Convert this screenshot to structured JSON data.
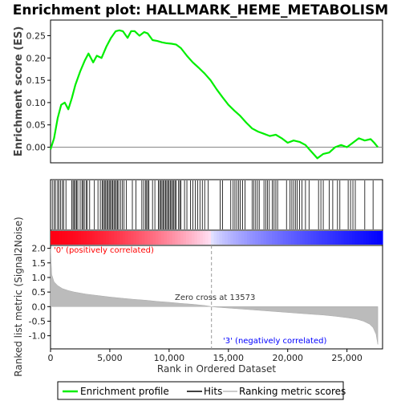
{
  "chart_data": {
    "type": "line",
    "title": "Enrichment plot: HALLMARK_HEME_METABOLISM",
    "top_panel": {
      "ylabel": "Enrichment score (ES)",
      "ylim": [
        -0.035,
        0.285
      ],
      "yticks": [
        0.0,
        0.05,
        0.1,
        0.15,
        0.2,
        0.25
      ],
      "ytick_labels": [
        "0.00",
        "0.05",
        "0.10",
        "0.15",
        "0.20",
        "0.25"
      ],
      "series": [
        {
          "name": "Enrichment profile",
          "color": "#00ee00",
          "x": [
            0,
            300,
            600,
            900,
            1200,
            1500,
            1800,
            2100,
            2500,
            2900,
            3200,
            3600,
            3900,
            4300,
            4700,
            5100,
            5500,
            5800,
            6100,
            6500,
            6800,
            7100,
            7500,
            7900,
            8200,
            8600,
            9000,
            9400,
            9800,
            10200,
            10600,
            11000,
            11500,
            12000,
            12500,
            13000,
            13500,
            14000,
            14500,
            15000,
            15500,
            16000,
            16500,
            17000,
            17500,
            18000,
            18500,
            19000,
            19500,
            20000,
            20500,
            21000,
            21500,
            22000,
            22500,
            23000,
            23500,
            24000,
            24500,
            25000,
            25500,
            26000,
            26500,
            27000,
            27300,
            27600
          ],
          "y": [
            -0.005,
            0.02,
            0.065,
            0.095,
            0.1,
            0.085,
            0.11,
            0.14,
            0.17,
            0.195,
            0.21,
            0.19,
            0.205,
            0.2,
            0.225,
            0.245,
            0.26,
            0.262,
            0.26,
            0.245,
            0.26,
            0.26,
            0.25,
            0.258,
            0.255,
            0.24,
            0.238,
            0.235,
            0.233,
            0.232,
            0.23,
            0.222,
            0.205,
            0.19,
            0.178,
            0.165,
            0.15,
            0.13,
            0.112,
            0.095,
            0.082,
            0.07,
            0.055,
            0.042,
            0.035,
            0.03,
            0.025,
            0.028,
            0.02,
            0.01,
            0.015,
            0.012,
            0.005,
            -0.01,
            -0.025,
            -0.015,
            -0.012,
            0.0,
            0.005,
            0.0,
            0.01,
            0.02,
            0.015,
            0.018,
            0.01,
            0.0
          ]
        }
      ]
    },
    "hits_panel": {
      "hit_positions": [
        150,
        300,
        420,
        600,
        700,
        850,
        1000,
        1100,
        1300,
        1800,
        1900,
        2000,
        2100,
        2200,
        2300,
        2500,
        2650,
        2750,
        2850,
        3000,
        3100,
        3300,
        3700,
        4000,
        4200,
        4350,
        4450,
        4550,
        4650,
        4750,
        4850,
        4950,
        5050,
        5150,
        5250,
        5350,
        5450,
        5550,
        5650,
        5750,
        5900,
        6050,
        6200,
        6400,
        6900,
        7200,
        7700,
        7850,
        8000,
        8100,
        8200,
        8300,
        8600,
        8800,
        9100,
        9200,
        9300,
        9400,
        9500,
        9600,
        9700,
        9800,
        9900,
        10000,
        10100,
        10200,
        10300,
        10400,
        10500,
        10600,
        10800,
        10900,
        11000,
        11300,
        11500,
        11800,
        12000,
        12200,
        12400,
        12600,
        12800,
        13000,
        13300,
        14300,
        14500,
        15200,
        15400,
        15550,
        15700,
        15850,
        16000,
        16200,
        16400,
        17000,
        17150,
        17300,
        17450,
        17600,
        18000,
        18150,
        18300,
        18450,
        18700,
        18850,
        19000,
        19150,
        19900,
        20200,
        20350,
        20500,
        20650,
        20800,
        21000,
        21200,
        21500,
        21800,
        22600,
        22800,
        23000,
        23500,
        23800,
        24200,
        24400,
        25100,
        25300,
        25500,
        25700,
        26500,
        27200
      ]
    },
    "rank_panel": {
      "ylabel": "Ranked list metric (Signal2Noise)",
      "xlabel": "Rank in Ordered Dataset",
      "xlim": [
        0,
        28000
      ],
      "ylim": [
        -1.45,
        2.1
      ],
      "yticks": [
        -1.0,
        -0.5,
        0.0,
        0.5,
        1.0,
        1.5,
        2.0
      ],
      "ytick_labels": [
        "-1.0",
        "-0.5",
        "0.0",
        "0.5",
        "1.0",
        "1.5",
        "2.0"
      ],
      "xticks": [
        0,
        5000,
        10000,
        15000,
        20000,
        25000
      ],
      "xtick_labels": [
        "0",
        "5,000",
        "10,000",
        "15,000",
        "20,000",
        "25,000"
      ],
      "metric_x": [
        0,
        100,
        300,
        600,
        1000,
        1500,
        2000,
        3000,
        4000,
        5000,
        6000,
        7000,
        8000,
        9000,
        10000,
        11000,
        12000,
        13000,
        13573,
        14000,
        15000,
        16000,
        17000,
        18000,
        19000,
        20000,
        21000,
        22000,
        23000,
        24000,
        25000,
        25800,
        26400,
        26900,
        27200,
        27450,
        27600
      ],
      "metric_y": [
        2.0,
        1.1,
        0.85,
        0.72,
        0.62,
        0.55,
        0.5,
        0.43,
        0.38,
        0.33,
        0.29,
        0.25,
        0.22,
        0.18,
        0.15,
        0.11,
        0.08,
        0.04,
        0.0,
        -0.02,
        -0.05,
        -0.08,
        -0.11,
        -0.14,
        -0.17,
        -0.2,
        -0.23,
        -0.26,
        -0.29,
        -0.33,
        -0.38,
        -0.43,
        -0.5,
        -0.6,
        -0.72,
        -0.95,
        -1.3
      ],
      "zero_cross_label": "Zero cross at 13573",
      "zero_cross_x": 13573,
      "pos_label": "'0' (positively correlated)",
      "neg_label": "'3' (negatively correlated)",
      "pos_color": "#ff0000",
      "neg_color": "#0000ff"
    },
    "legend": {
      "items": [
        {
          "label": "Enrichment profile",
          "color": "#00ee00"
        },
        {
          "label": "Hits",
          "color": "#000000"
        },
        {
          "label": "Ranking metric scores",
          "color": "#bbbbbb"
        }
      ]
    }
  }
}
